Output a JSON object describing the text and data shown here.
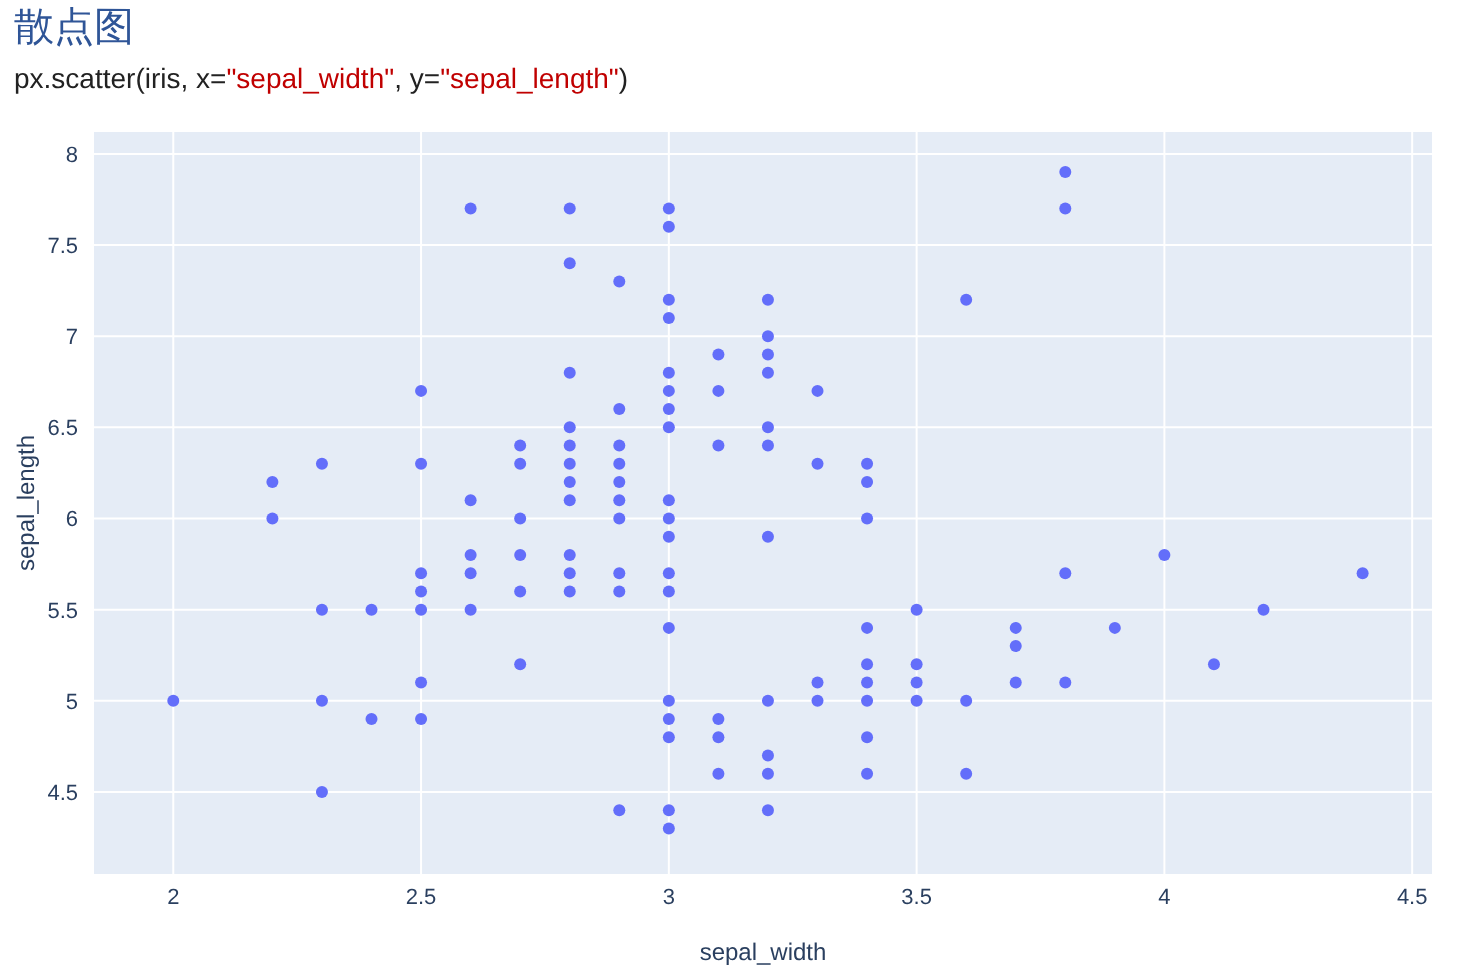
{
  "chart_data": {
    "type": "scatter",
    "title": "散点图",
    "subtitle": "px.scatter(iris, x=\"sepal_width\", y=\"sepal_length\")",
    "xlabel": "sepal_width",
    "ylabel": "sepal_length",
    "color": "#636efa",
    "marker": "circle",
    "grid": true,
    "xlim": [
      1.84,
      4.54
    ],
    "ylim": [
      4.05,
      8.12
    ],
    "xticks": [
      2,
      2.5,
      3,
      3.5,
      4,
      4.5
    ],
    "yticks": [
      4.5,
      5,
      5.5,
      6,
      6.5,
      7,
      7.5,
      8
    ],
    "x": [
      3.5,
      3.0,
      3.2,
      3.1,
      3.6,
      3.9,
      3.4,
      3.4,
      2.9,
      3.1,
      3.7,
      3.4,
      3.0,
      3.0,
      4.0,
      4.4,
      3.8,
      3.8,
      3.4,
      3.7,
      3.6,
      3.3,
      3.0,
      3.5,
      3.4,
      3.1,
      4.1,
      4.2,
      3.2,
      3.5,
      3.0,
      3.4,
      3.5,
      2.3,
      3.2,
      3.2,
      3.7,
      3.3,
      3.2,
      3.2,
      3.1,
      2.3,
      2.8,
      2.8,
      3.3,
      2.4,
      2.9,
      2.7,
      2.0,
      3.0,
      2.2,
      2.9,
      2.9,
      3.1,
      3.0,
      2.7,
      2.2,
      2.5,
      3.2,
      2.8,
      2.5,
      2.9,
      3.0,
      2.8,
      3.0,
      2.9,
      2.6,
      2.4,
      2.7,
      3.0,
      3.4,
      2.3,
      2.5,
      2.6,
      3.0,
      2.6,
      2.3,
      2.7,
      3.0,
      2.9,
      2.9,
      2.5,
      3.0,
      2.9,
      3.0,
      3.0,
      2.5,
      2.9,
      2.5,
      3.6,
      3.2,
      2.7,
      3.0,
      2.5,
      2.8,
      3.8,
      2.6,
      3.2,
      2.8,
      2.8,
      2.7,
      3.3,
      3.2,
      2.8,
      2.8,
      3.0,
      2.8,
      3.8,
      2.8,
      2.6,
      3.0,
      3.4,
      3.1,
      3.0,
      3.2,
      3.4
    ],
    "values": [
      5.1,
      4.9,
      4.7,
      4.6,
      5.0,
      5.4,
      4.6,
      5.0,
      4.4,
      4.9,
      5.4,
      4.8,
      4.8,
      4.3,
      5.8,
      5.7,
      5.7,
      5.1,
      5.4,
      5.1,
      4.6,
      5.1,
      5.0,
      5.2,
      5.2,
      4.8,
      5.2,
      5.5,
      5.0,
      5.5,
      4.4,
      5.1,
      5.0,
      4.5,
      4.4,
      4.6,
      5.3,
      5.0,
      7.0,
      6.4,
      6.9,
      5.5,
      6.5,
      5.7,
      6.3,
      4.9,
      6.6,
      5.2,
      5.0,
      5.9,
      6.0,
      6.1,
      5.6,
      6.7,
      5.6,
      5.8,
      6.2,
      5.6,
      5.9,
      6.1,
      6.3,
      6.4,
      6.6,
      6.8,
      6.7,
      6.0,
      5.7,
      5.5,
      6.0,
      5.4,
      6.0,
      6.3,
      5.5,
      5.5,
      6.1,
      5.8,
      5.0,
      5.6,
      5.7,
      5.7,
      6.2,
      5.1,
      7.1,
      6.3,
      6.5,
      7.6,
      4.9,
      7.3,
      6.7,
      7.2,
      6.5,
      6.4,
      6.8,
      5.7,
      5.8,
      7.7,
      7.7,
      6.9,
      5.6,
      7.7,
      6.3,
      6.7,
      7.2,
      6.2,
      6.4,
      7.2,
      7.4,
      7.9,
      6.3,
      6.1,
      7.7,
      6.3,
      6.4,
      6.0,
      6.8,
      6.2
    ]
  }
}
